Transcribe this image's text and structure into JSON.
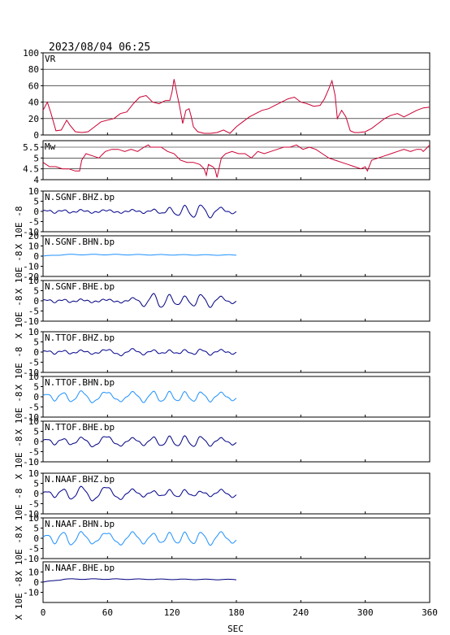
{
  "header": {
    "datetime": "2023/08/04  06:25"
  },
  "colors": {
    "vr": "#cc0033",
    "mw": "#cc0033",
    "bhz": "#00008b",
    "bhn": "#1e90ff",
    "bhe": "#000080"
  },
  "chart_data": {
    "type": "line",
    "xlabel": "SEC",
    "xlim": [
      0,
      360
    ],
    "xticks": [
      0,
      60,
      120,
      180,
      240,
      300,
      360
    ],
    "panels": [
      {
        "title": "VR",
        "ylim": [
          0,
          100
        ],
        "yticks": [
          0,
          20,
          40,
          60,
          80,
          100
        ],
        "grid": true,
        "color": "#cc0033",
        "series": [
          {
            "x": [
              0,
              4,
              7,
              12,
              17,
              22,
              25,
              30,
              36,
              42,
              48,
              54,
              60,
              66,
              72,
              78,
              84,
              90,
              96,
              102,
              108,
              114,
              118,
              120,
              122,
              125,
              127,
              130,
              133,
              136,
              138,
              140,
              144,
              150,
              156,
              162,
              168,
              174,
              180,
              186,
              192,
              198,
              204,
              210,
              216,
              222,
              228,
              234,
              240,
              246,
              252,
              258,
              262,
              266,
              269,
              272,
              274,
              278,
              282,
              286,
              290,
              294,
              300,
              306,
              312,
              318,
              324,
              330,
              336,
              342,
              348,
              354,
              360
            ],
            "y": [
              30,
              40,
              28,
              5,
              6,
              18,
              12,
              4,
              3,
              4,
              10,
              16,
              18,
              20,
              26,
              28,
              38,
              46,
              48,
              40,
              38,
              42,
              42,
              52,
              68,
              48,
              36,
              14,
              30,
              32,
              22,
              10,
              4,
              2,
              2,
              3,
              6,
              2,
              10,
              16,
              22,
              26,
              30,
              32,
              36,
              40,
              44,
              46,
              40,
              38,
              35,
              36,
              44,
              56,
              66,
              48,
              20,
              30,
              22,
              5,
              3,
              3,
              4,
              8,
              14,
              20,
              24,
              26,
              22,
              26,
              30,
              33,
              34
            ]
          }
        ]
      },
      {
        "title": "Mw",
        "ylim": [
          4.0,
          5.8
        ],
        "yticks": [
          4.0,
          4.5,
          5.0,
          5.5
        ],
        "grid": true,
        "color": "#cc0033",
        "series": [
          {
            "x": [
              0,
              6,
              12,
              18,
              24,
              30,
              34,
              36,
              40,
              46,
              52,
              58,
              64,
              70,
              76,
              82,
              88,
              94,
              98,
              100,
              104,
              110,
              116,
              122,
              128,
              134,
              140,
              146,
              150,
              152,
              154,
              158,
              160,
              162,
              166,
              170,
              176,
              182,
              188,
              194,
              200,
              206,
              212,
              218,
              224,
              230,
              236,
              242,
              248,
              254,
              260,
              266,
              272,
              278,
              284,
              290,
              296,
              300,
              302,
              306,
              312,
              318,
              324,
              330,
              336,
              342,
              348,
              352,
              354,
              358,
              360
            ],
            "y": [
              4.8,
              4.6,
              4.6,
              4.5,
              4.5,
              4.4,
              4.4,
              4.9,
              5.2,
              5.1,
              5.0,
              5.3,
              5.4,
              5.4,
              5.3,
              5.4,
              5.3,
              5.5,
              5.6,
              5.5,
              5.5,
              5.5,
              5.3,
              5.2,
              4.9,
              4.8,
              4.8,
              4.7,
              4.5,
              4.2,
              4.7,
              4.6,
              4.5,
              4.1,
              5.0,
              5.2,
              5.3,
              5.2,
              5.2,
              5.0,
              5.3,
              5.2,
              5.3,
              5.4,
              5.5,
              5.5,
              5.6,
              5.4,
              5.5,
              5.4,
              5.2,
              5.0,
              4.9,
              4.8,
              4.7,
              4.6,
              4.5,
              4.6,
              4.4,
              4.9,
              5.0,
              5.1,
              5.2,
              5.3,
              5.4,
              5.3,
              5.4,
              5.4,
              5.3,
              5.5,
              5.6
            ]
          }
        ]
      },
      {
        "title": "N.SGNF.BHZ.bp",
        "ylim": [
          -10,
          10
        ],
        "yticks": [
          -10,
          -5,
          0,
          5,
          10
        ],
        "color": "#00008b",
        "units": "X 10E -8",
        "trace": "bhz0"
      },
      {
        "title": "N.SGNF.BHN.bp",
        "ylim": [
          -20,
          20
        ],
        "yticks": [
          -20,
          -10,
          0,
          10,
          20
        ],
        "color": "#1e90ff",
        "units": "X 10E -8",
        "trace": "bhn0"
      },
      {
        "title": "N.SGNF.BHE.bp",
        "ylim": [
          -10,
          10
        ],
        "yticks": [
          -10,
          -5,
          0,
          5,
          10
        ],
        "color": "#000080",
        "units": "X 10E -8",
        "trace": "bhe0"
      },
      {
        "title": "N.TTOF.BHZ.bp",
        "ylim": [
          -10,
          10
        ],
        "yticks": [
          -10,
          -5,
          0,
          5,
          10
        ],
        "color": "#00008b",
        "units": "X 10E -8",
        "trace": "bhz1"
      },
      {
        "title": "N.TTOF.BHN.bp",
        "ylim": [
          -10,
          10
        ],
        "yticks": [
          -10,
          -5,
          0,
          5,
          10
        ],
        "color": "#1e90ff",
        "units": "X 10E -8",
        "trace": "bhn1"
      },
      {
        "title": "N.TTOF.BHE.bp",
        "ylim": [
          -10,
          10
        ],
        "yticks": [
          -10,
          -5,
          0,
          5,
          10
        ],
        "color": "#000080",
        "units": "X 10E -8",
        "trace": "bhe1"
      },
      {
        "title": "N.NAAF.BHZ.bp",
        "ylim": [
          -10,
          10
        ],
        "yticks": [
          -10,
          -5,
          0,
          5,
          10
        ],
        "color": "#00008b",
        "units": "X 10E -8",
        "trace": "bhz2"
      },
      {
        "title": "N.NAAF.BHN.bp",
        "ylim": [
          -10,
          10
        ],
        "yticks": [
          -10,
          -5,
          0,
          5,
          10
        ],
        "color": "#1e90ff",
        "units": "X 10E -8",
        "trace": "bhn2"
      },
      {
        "title": "N.NAAF.BHE.bp",
        "ylim": [
          -20,
          20
        ],
        "yticks": [
          -10,
          0,
          10
        ],
        "color": "#000080",
        "units": "X 10E -8",
        "trace": "bhe2"
      }
    ]
  }
}
